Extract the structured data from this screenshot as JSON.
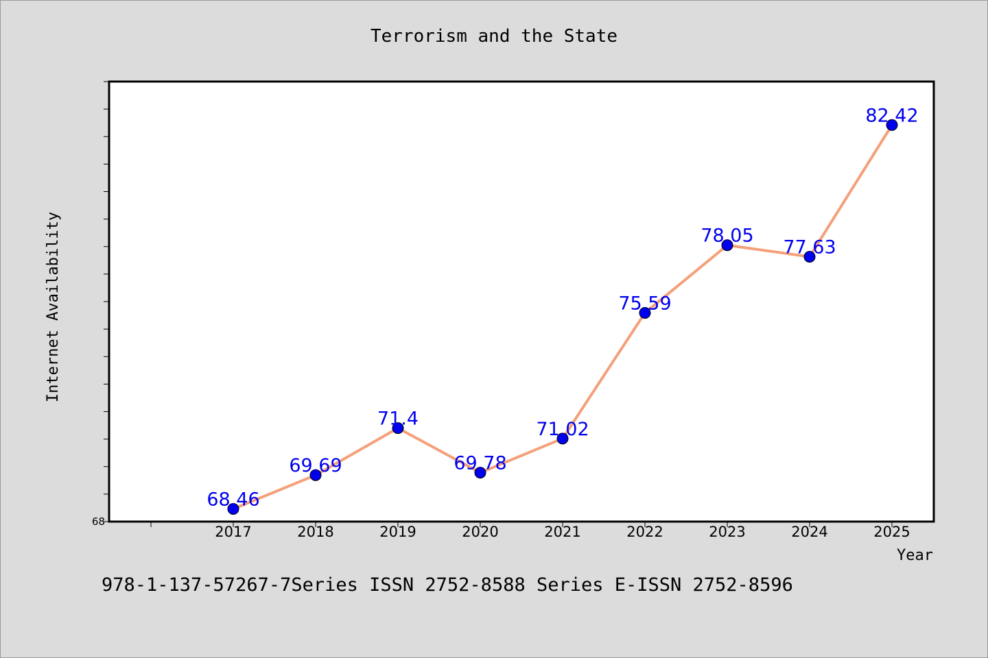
{
  "chart_data": {
    "type": "line",
    "title": "Terrorism and the State",
    "xlabel": "Year",
    "ylabel": "Internet Availability",
    "categories": [
      "2017",
      "2018",
      "2019",
      "2020",
      "2021",
      "2022",
      "2023",
      "2024",
      "2025"
    ],
    "series": [
      {
        "values": [
          68.46,
          69.69,
          71.4,
          69.78,
          71.02,
          75.59,
          78.05,
          77.63,
          82.42
        ],
        "labels": [
          "68.46",
          "69.69",
          "71.4",
          "69.78",
          "71.02",
          "75.59",
          "78.05",
          "77.63",
          "82.42"
        ],
        "line_color": "#f4a07a",
        "marker_color": "#0000ee"
      }
    ],
    "ylim": [
      68,
      84
    ],
    "ytick_labels": [
      "68"
    ],
    "grid": false,
    "label_color": "#0000ee"
  },
  "footer": {
    "text": "978-1-137-57267-7Series ISSN 2752-8588 Series E-ISSN 2752-8596"
  },
  "colors": {
    "background": "#dcdcdc",
    "plot_background": "#ffffff"
  }
}
